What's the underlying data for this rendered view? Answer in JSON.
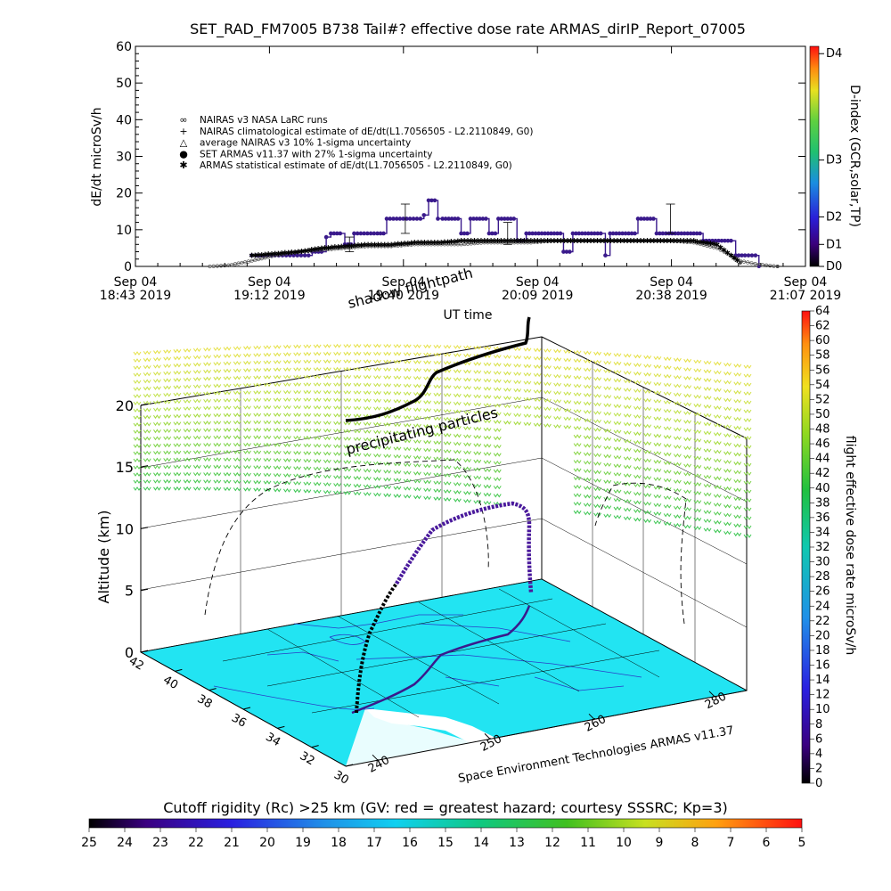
{
  "chart_data": [
    {
      "type": "line",
      "title": "SET_RAD_FM7005  B738 Tail#? effective dose rate ARMAS_dirIP_Report_07005",
      "ylabel": "dE/dt microSv/h",
      "xlabel": "UT time",
      "ylim": [
        0,
        60
      ],
      "yticks": [
        "0",
        "10",
        "20",
        "30",
        "40",
        "50",
        "60"
      ],
      "xticks": [
        {
          "l1": "Sep 04",
          "l2": "18:43 2019"
        },
        {
          "l1": "Sep 04",
          "l2": "19:12 2019"
        },
        {
          "l1": "Sep 04",
          "l2": "19:40 2019"
        },
        {
          "l1": "Sep 04",
          "l2": "20:09 2019"
        },
        {
          "l1": "Sep 04",
          "l2": "20:38 2019"
        },
        {
          "l1": "Sep 04",
          "l2": "21:07 2019"
        }
      ],
      "xlim_minutes_after_1843": [
        0,
        144
      ],
      "legend": [
        {
          "symbol": "∞",
          "label": "NAIRAS v3 NASA LaRC runs"
        },
        {
          "symbol": "+",
          "label": "NAIRAS climatological estimate of dE/dt(L1.7056505 - L2.2110849, G0)"
        },
        {
          "symbol": "△",
          "label": "average NAIRAS v3 10% 1-sigma uncertainty"
        },
        {
          "symbol": "●",
          "label": "SET ARMAS v11.37 with 27% 1-sigma uncertainty"
        },
        {
          "symbol": "✱",
          "label": "ARMAS statistical estimate of dE/dt(L1.7056505 - L2.2110849, G0)"
        }
      ],
      "right_axis": {
        "label": "D-index (GCR,solar,TP)",
        "ticks": [
          {
            "label": "D0",
            "value": 0
          },
          {
            "label": "D1",
            "value": 6
          },
          {
            "label": "D2",
            "value": 13.5
          },
          {
            "label": "D3",
            "value": 29
          },
          {
            "label": "D4",
            "value": 58
          }
        ]
      },
      "series": [
        {
          "name": "SET ARMAS v11.37",
          "color": "#3a1a8c",
          "x": [
            25,
            26,
            30,
            34,
            38,
            40,
            41,
            42,
            44,
            45,
            47,
            52,
            54,
            59,
            62,
            63,
            65,
            66,
            68,
            70,
            72,
            74,
            76,
            78,
            80,
            82,
            84,
            86,
            88,
            90,
            92,
            94,
            96,
            98,
            100,
            101,
            102,
            104,
            106,
            108,
            110,
            112,
            114,
            116,
            118,
            120,
            122,
            124,
            126,
            128,
            129,
            131,
            134
          ],
          "y": [
            3,
            3,
            3,
            3,
            4,
            4,
            8,
            9,
            9,
            6,
            9,
            9,
            13,
            13,
            14,
            18,
            13,
            13,
            13,
            9,
            13,
            13,
            9,
            13,
            13,
            7,
            9,
            9,
            9,
            9,
            4,
            9,
            9,
            9,
            9,
            3,
            9,
            9,
            9,
            13,
            13,
            9,
            9,
            9,
            9,
            9,
            7,
            7,
            7,
            7,
            3,
            3,
            0
          ]
        },
        {
          "name": "NAIRAS v3 NASA LaRC runs",
          "color": "#555555",
          "x": [
            16,
            20,
            25,
            30,
            35,
            40,
            45,
            50,
            55,
            60,
            65,
            70,
            75,
            80,
            85,
            90,
            95,
            100,
            105,
            110,
            115,
            120,
            125,
            128,
            130,
            134,
            138
          ],
          "y": [
            0,
            0.3,
            1.5,
            3,
            4,
            4.5,
            5,
            5.5,
            5.5,
            6,
            6,
            6,
            6.5,
            6.5,
            6.5,
            7,
            7,
            7,
            7,
            7,
            7,
            6.5,
            5,
            3,
            1.5,
            0.5,
            0
          ]
        },
        {
          "name": "ARMAS statistical estimate",
          "color": "#333333",
          "x": [
            25,
            30,
            35,
            40,
            45,
            50,
            55,
            60,
            65,
            70,
            75,
            80,
            85,
            90,
            95,
            100,
            105,
            110,
            115,
            120,
            125,
            128,
            130
          ],
          "y": [
            3,
            3.5,
            4,
            5,
            5.5,
            6,
            6,
            6.5,
            6.5,
            7,
            7,
            7,
            7,
            7,
            7,
            7,
            7,
            7,
            7,
            7,
            6,
            3,
            1
          ]
        }
      ],
      "error_bars": [
        {
          "x": 58,
          "y": 13,
          "err": 4
        },
        {
          "x": 46,
          "y": 6,
          "err": 2
        },
        {
          "x": 115,
          "y": 13,
          "err": 4
        },
        {
          "x": 80,
          "y": 9,
          "err": 3
        }
      ]
    },
    {
      "type": "scatter",
      "title": "",
      "zlabel": "Altitude (km)",
      "zticks": [
        "0",
        "5",
        "10",
        "15",
        "20"
      ],
      "lat_ticks": [
        "42",
        "40",
        "38",
        "36",
        "34",
        "32",
        "30"
      ],
      "lon_ticks": [
        "240",
        "250",
        "260",
        "280"
      ],
      "annotations": [
        "shadow flightpath",
        "precipitating particles",
        "UT time"
      ],
      "caption": "Space Environment Technologies ARMAS v11.37",
      "colorbar": {
        "label": "flight effective dose rate microSv/h",
        "ticks": [
          "0",
          "2",
          "4",
          "6",
          "8",
          "10",
          "12",
          "14",
          "16",
          "18",
          "20",
          "22",
          "24",
          "26",
          "28",
          "30",
          "32",
          "34",
          "36",
          "38",
          "40",
          "42",
          "44",
          "46",
          "48",
          "50",
          "52",
          "54",
          "56",
          "58",
          "60",
          "62",
          "64"
        ],
        "range": [
          0,
          64
        ]
      }
    },
    {
      "type": "heatmap",
      "title": "Cutoff rigidity (Rc) >25 km (GV: red = greatest hazard; courtesy SSSRC; Kp=3)",
      "colorbar_ticks": [
        "25",
        "24",
        "23",
        "22",
        "21",
        "20",
        "19",
        "18",
        "17",
        "16",
        "15",
        "14",
        "13",
        "12",
        "11",
        "10",
        "9",
        "8",
        "7",
        "6",
        "5"
      ],
      "range": [
        25,
        5
      ]
    }
  ]
}
